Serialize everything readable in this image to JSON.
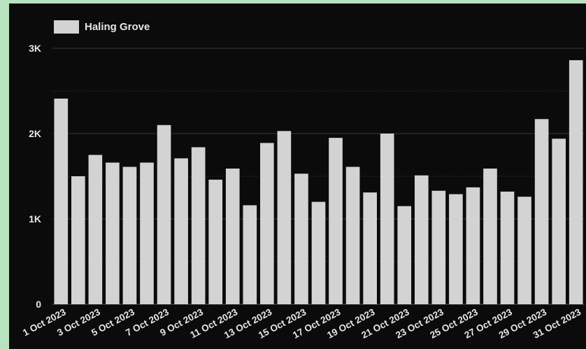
{
  "chart_data": {
    "type": "bar",
    "categories": [
      "1 Oct 2023",
      "2 Oct 2023",
      "3 Oct 2023",
      "4 Oct 2023",
      "5 Oct 2023",
      "6 Oct 2023",
      "7 Oct 2023",
      "8 Oct 2023",
      "9 Oct 2023",
      "10 Oct 2023",
      "11 Oct 2023",
      "12 Oct 2023",
      "13 Oct 2023",
      "14 Oct 2023",
      "15 Oct 2023",
      "16 Oct 2023",
      "17 Oct 2023",
      "18 Oct 2023",
      "19 Oct 2023",
      "20 Oct 2023",
      "21 Oct 2023",
      "22 Oct 2023",
      "23 Oct 2023",
      "24 Oct 2023",
      "25 Oct 2023",
      "26 Oct 2023",
      "27 Oct 2023",
      "28 Oct 2023",
      "29 Oct 2023",
      "30 Oct 2023",
      "31 Oct 2023"
    ],
    "x_tick_labels": [
      "1 Oct 2023",
      "3 Oct 2023",
      "5 Oct 2023",
      "7 Oct 2023",
      "9 Oct 2023",
      "11 Oct 2023",
      "13 Oct 2023",
      "15 Oct 2023",
      "17 Oct 2023",
      "19 Oct 2023",
      "21 Oct 2023",
      "23 Oct 2023",
      "25 Oct 2023",
      "27 Oct 2023",
      "29 Oct 2023",
      "31 Oct 2023"
    ],
    "series": [
      {
        "name": "Haling Grove",
        "color": "#d3d3d3",
        "values": [
          2410,
          1500,
          1750,
          1660,
          1610,
          1660,
          2100,
          1710,
          1840,
          1460,
          1590,
          1160,
          1890,
          2030,
          1530,
          1200,
          1950,
          1610,
          1310,
          2000,
          1150,
          1510,
          1330,
          1290,
          1370,
          1590,
          1320,
          1260,
          2170,
          1940,
          2860
        ]
      }
    ],
    "yticks": [
      0,
      1000,
      2000,
      3000
    ],
    "ytick_labels": [
      "0",
      "1K",
      "2K",
      "3K"
    ],
    "ylim": [
      0,
      3000
    ],
    "grid": true,
    "legend": "top-left",
    "background": "#0b0b0b",
    "grid_color": "#4a4a4a",
    "text_color": "#e6e6e6"
  }
}
